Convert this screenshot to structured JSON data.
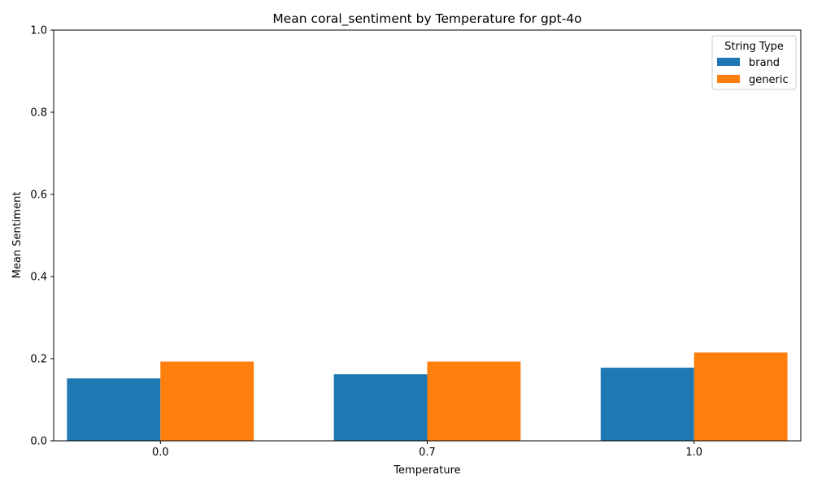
{
  "chart_data": {
    "type": "bar",
    "title": "Mean coral_sentiment by Temperature for gpt-4o",
    "xlabel": "Temperature",
    "ylabel": "Mean Sentiment",
    "categories": [
      "0.0",
      "0.7",
      "1.0"
    ],
    "series": [
      {
        "name": "brand",
        "color": "#1f77b4",
        "values": [
          0.152,
          0.162,
          0.178
        ]
      },
      {
        "name": "generic",
        "color": "#ff7f0e",
        "values": [
          0.193,
          0.193,
          0.215
        ]
      }
    ],
    "ylim": [
      0,
      1.0
    ],
    "yticks": [
      "0.0",
      "0.2",
      "0.4",
      "0.6",
      "0.8",
      "1.0"
    ],
    "grid": false,
    "legend": {
      "title": "String Type",
      "position": "top-right"
    }
  }
}
